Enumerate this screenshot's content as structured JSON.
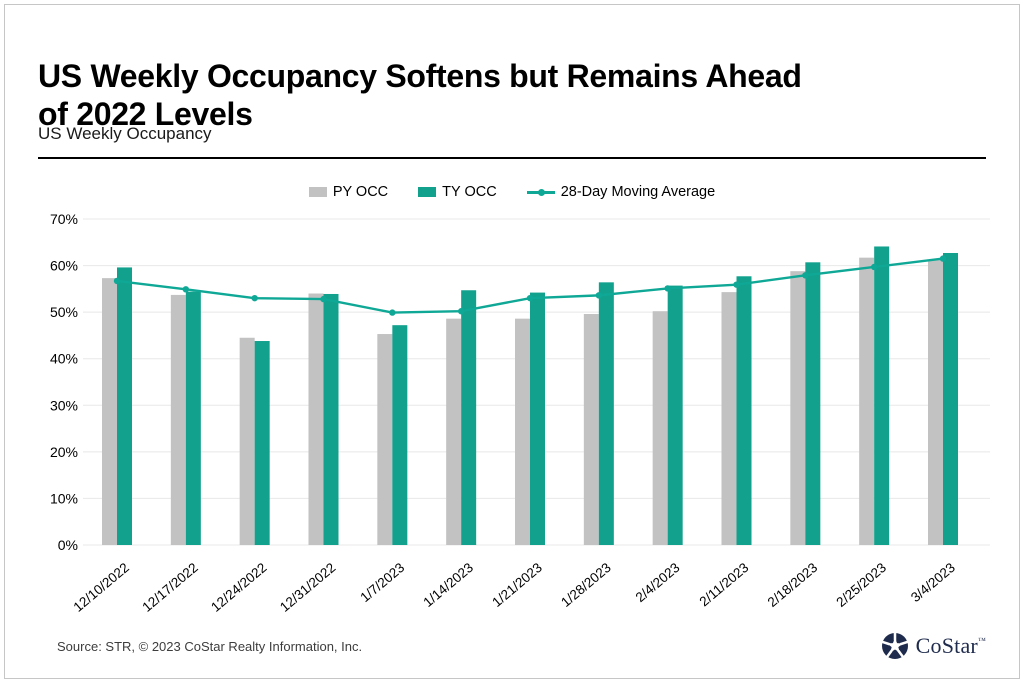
{
  "page": {
    "title": "US Weekly Occupancy Softens but Remains Ahead\nof 2022 Levels",
    "subtitle": "US Weekly Occupancy",
    "source": "Source: STR, © 2023 CoStar Realty Information, Inc.",
    "brand": {
      "name": "CoStar",
      "tm": "™"
    }
  },
  "colors": {
    "py_occ": "#C2C2C2",
    "ty_occ": "#12A18D",
    "moving_avg": "#0FA896",
    "grid": "#E8E8E8",
    "text": "#000000",
    "source_text": "#3D3D3D",
    "brand_navy": "#1F2B4D"
  },
  "chart_data": {
    "type": "bar",
    "title": "US Weekly Occupancy",
    "categories": [
      "12/10/2022",
      "12/17/2022",
      "12/24/2022",
      "12/31/2022",
      "1/7/2023",
      "1/14/2023",
      "1/21/2023",
      "1/28/2023",
      "2/4/2023",
      "2/11/2023",
      "2/18/2023",
      "2/25/2023",
      "3/4/2023"
    ],
    "series": [
      {
        "name": "PY OCC",
        "type": "bar",
        "color": "#C2C2C2",
        "values": [
          57.3,
          53.7,
          44.5,
          54.0,
          45.3,
          48.6,
          48.6,
          49.6,
          50.2,
          54.3,
          58.8,
          61.7,
          61.3
        ]
      },
      {
        "name": "TY OCC",
        "type": "bar",
        "color": "#12A18D",
        "values": [
          59.6,
          54.4,
          43.8,
          53.9,
          47.2,
          54.7,
          54.2,
          56.4,
          55.7,
          57.7,
          60.7,
          64.1,
          62.7
        ]
      },
      {
        "name": "28-Day Moving Average",
        "type": "line",
        "color": "#0FA896",
        "values": [
          56.7,
          54.9,
          53.0,
          52.8,
          49.9,
          50.2,
          53.0,
          53.6,
          55.1,
          55.9,
          57.9,
          59.7,
          61.5
        ]
      }
    ],
    "xlabel": "",
    "ylabel": "",
    "ylim": [
      0,
      70
    ],
    "ytick_step": 10,
    "ytick_suffix": "%",
    "grid": true,
    "legend_position": "top"
  }
}
